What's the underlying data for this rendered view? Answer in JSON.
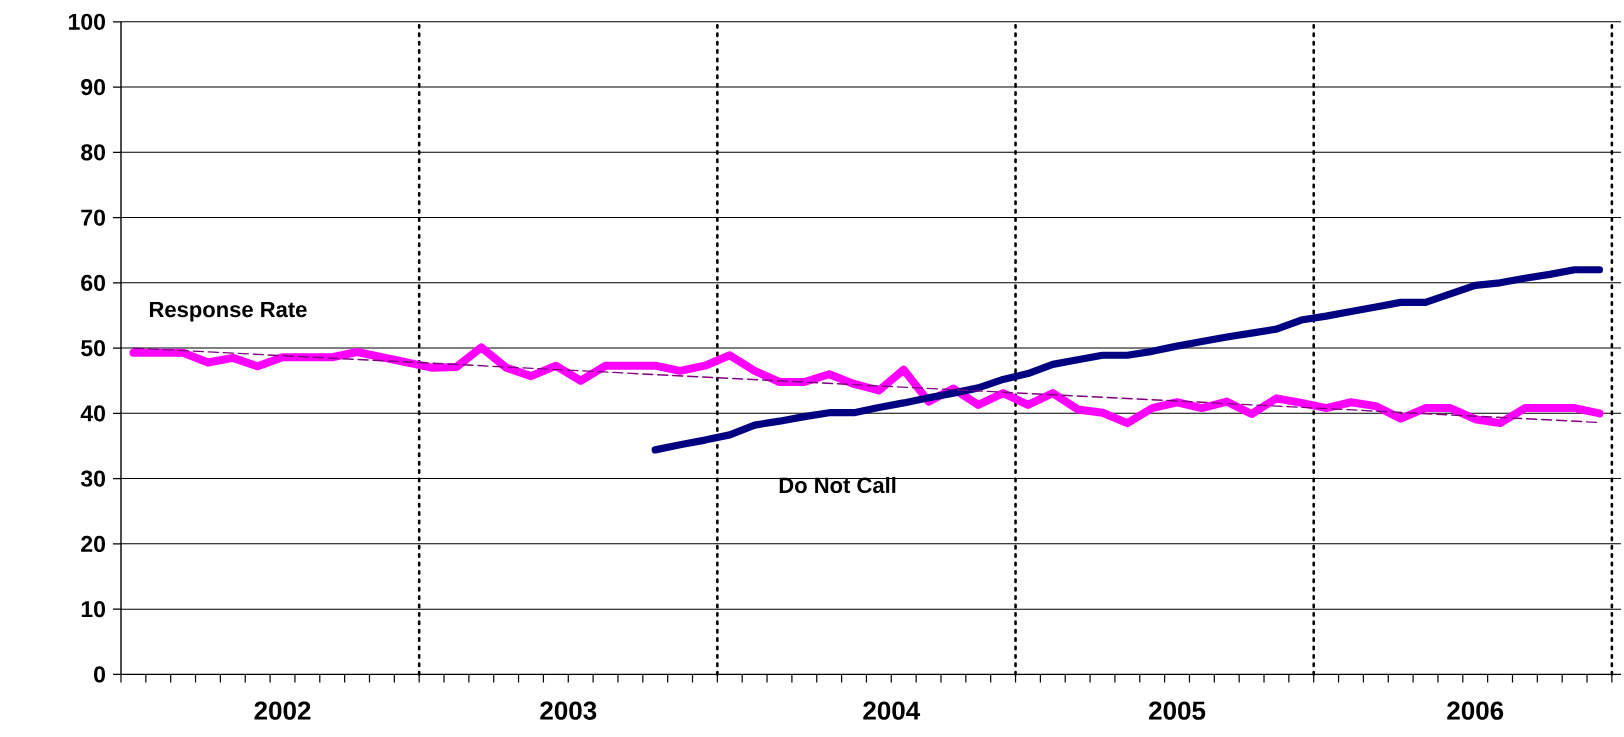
{
  "chart_data": {
    "type": "line",
    "x": [
      "2002-01",
      "2002-02",
      "2002-03",
      "2002-04",
      "2002-05",
      "2002-06",
      "2002-07",
      "2002-08",
      "2002-09",
      "2002-10",
      "2002-11",
      "2002-12",
      "2003-01",
      "2003-02",
      "2003-03",
      "2003-04",
      "2003-05",
      "2003-06",
      "2003-07",
      "2003-08",
      "2003-09",
      "2003-10",
      "2003-11",
      "2003-12",
      "2004-01",
      "2004-02",
      "2004-03",
      "2004-04",
      "2004-05",
      "2004-06",
      "2004-07",
      "2004-08",
      "2004-09",
      "2004-10",
      "2004-11",
      "2004-12",
      "2005-01",
      "2005-02",
      "2005-03",
      "2005-04",
      "2005-05",
      "2005-06",
      "2005-07",
      "2005-08",
      "2005-09",
      "2005-10",
      "2005-11",
      "2005-12",
      "2006-01",
      "2006-02",
      "2006-03",
      "2006-04",
      "2006-05",
      "2006-06",
      "2006-07",
      "2006-08",
      "2006-09",
      "2006-10",
      "2006-11",
      "2006-12"
    ],
    "series": [
      {
        "name": "Response Rate",
        "color": "#ff00ff",
        "values": [
          49.3,
          49.3,
          49.3,
          47.8,
          48.5,
          47.2,
          48.6,
          48.6,
          48.6,
          49.4,
          48.6,
          47.8,
          47.0,
          47.1,
          50.1,
          47.0,
          45.7,
          47.3,
          45.0,
          47.3,
          47.3,
          47.3,
          46.5,
          47.3,
          48.9,
          46.5,
          44.8,
          44.8,
          46.0,
          44.5,
          43.5,
          46.7,
          41.8,
          43.8,
          41.3,
          43.1,
          41.3,
          43.1,
          40.6,
          40.1,
          38.5,
          40.8,
          41.7,
          40.8,
          41.8,
          39.9,
          42.3,
          41.6,
          40.8,
          41.7,
          41.1,
          39.2,
          40.8,
          40.8,
          39.1,
          38.5,
          40.8,
          40.8,
          40.8,
          40.0
        ]
      },
      {
        "name": "Do Not Call",
        "color": "#000080",
        "values": [
          null,
          null,
          null,
          null,
          null,
          null,
          null,
          null,
          null,
          null,
          null,
          null,
          null,
          null,
          null,
          null,
          null,
          null,
          null,
          null,
          null,
          34.4,
          35.2,
          35.9,
          36.7,
          38.2,
          38.8,
          39.5,
          40.1,
          40.1,
          40.9,
          41.6,
          42.4,
          43.1,
          43.9,
          45.2,
          46.1,
          47.5,
          48.2,
          48.9,
          48.9,
          49.5,
          50.3,
          51.0,
          51.7,
          52.3,
          52.9,
          54.3,
          54.9,
          55.6,
          56.3,
          57.0,
          57.0,
          58.3,
          59.6,
          60.0,
          60.7,
          61.3,
          62.0,
          62.0
        ]
      },
      {
        "color": "#800080",
        "line_style": "dashed",
        "x": [
          "2002-01",
          "2006-12"
        ],
        "values": [
          50.0,
          38.6
        ]
      }
    ],
    "xlim": [
      "2001-12-16",
      "2006-12-27"
    ],
    "xticks": [
      {
        "value": "2001-12-16",
        "label": null
      },
      {
        "value": "2002-01-16",
        "label": null
      },
      {
        "value": "2002-02-16",
        "label": null
      },
      {
        "value": "2002-03-16",
        "label": null
      },
      {
        "value": "2002-04-16",
        "label": null
      },
      {
        "value": "2002-05-16",
        "label": null
      },
      {
        "value": "2002-06-16",
        "label": null
      },
      {
        "value": "2002-07-16",
        "label": null
      },
      {
        "value": "2002-08-16",
        "label": null
      },
      {
        "value": "2002-09-16",
        "label": null
      },
      {
        "value": "2002-10-16",
        "label": null
      },
      {
        "value": "2002-11-16",
        "label": null
      },
      {
        "value": "2002-12-16",
        "label": null
      },
      {
        "value": "2003-01-16",
        "label": null
      },
      {
        "value": "2003-02-16",
        "label": null
      },
      {
        "value": "2003-03-16",
        "label": null
      },
      {
        "value": "2003-04-16",
        "label": null
      },
      {
        "value": "2003-05-16",
        "label": null
      },
      {
        "value": "2003-06-16",
        "label": null
      },
      {
        "value": "2003-07-16",
        "label": null
      },
      {
        "value": "2003-08-16",
        "label": null
      },
      {
        "value": "2003-09-16",
        "label": null
      },
      {
        "value": "2003-10-16",
        "label": null
      },
      {
        "value": "2003-11-16",
        "label": null
      },
      {
        "value": "2003-12-16",
        "label": null
      },
      {
        "value": "2004-01-16",
        "label": null
      },
      {
        "value": "2004-02-16",
        "label": null
      },
      {
        "value": "2004-03-16",
        "label": null
      },
      {
        "value": "2004-04-16",
        "label": null
      },
      {
        "value": "2004-05-16",
        "label": null
      },
      {
        "value": "2004-06-16",
        "label": null
      },
      {
        "value": "2004-07-16",
        "label": null
      },
      {
        "value": "2004-08-16",
        "label": null
      },
      {
        "value": "2004-09-16",
        "label": null
      },
      {
        "value": "2004-10-16",
        "label": null
      },
      {
        "value": "2004-11-16",
        "label": null
      },
      {
        "value": "2004-12-16",
        "label": null
      },
      {
        "value": "2005-01-16",
        "label": null
      },
      {
        "value": "2005-02-16",
        "label": null
      },
      {
        "value": "2005-03-16",
        "label": null
      },
      {
        "value": "2005-04-16",
        "label": null
      },
      {
        "value": "2005-05-16",
        "label": null
      },
      {
        "value": "2005-06-16",
        "label": null
      },
      {
        "value": "2005-07-16",
        "label": null
      },
      {
        "value": "2005-08-16",
        "label": null
      },
      {
        "value": "2005-09-16",
        "label": null
      },
      {
        "value": "2005-10-16",
        "label": null
      },
      {
        "value": "2005-11-16",
        "label": null
      },
      {
        "value": "2005-12-16",
        "label": null
      },
      {
        "value": "2006-01-16",
        "label": null
      },
      {
        "value": "2006-02-16",
        "label": null
      },
      {
        "value": "2006-03-16",
        "label": null
      },
      {
        "value": "2006-04-16",
        "label": null
      },
      {
        "value": "2006-05-16",
        "label": null
      },
      {
        "value": "2006-06-16",
        "label": null
      },
      {
        "value": "2006-07-16",
        "label": null
      },
      {
        "value": "2006-08-16",
        "label": null
      },
      {
        "value": "2006-09-16",
        "label": null
      },
      {
        "value": "2006-10-16",
        "label": null
      },
      {
        "value": "2006-11-16",
        "label": null
      },
      {
        "value": "2006-12-16",
        "label": null
      },
      {
        "value": "2002-07-01",
        "label": "2002"
      },
      {
        "value": "2003-06-16",
        "label": "2003"
      },
      {
        "value": "2004-07-16",
        "label": "2004"
      },
      {
        "value": "2005-07-01",
        "label": "2005"
      },
      {
        "value": "2006-07-01",
        "label": "2006"
      }
    ],
    "ylim": [
      0,
      100
    ],
    "yticks": [
      0,
      10,
      20,
      30,
      40,
      50,
      60,
      70,
      80,
      90,
      100
    ],
    "grid": "y",
    "ref_lines": [
      {
        "axis": "x",
        "value": "2002-12-16",
        "color": "#000000",
        "line_style": "dotted"
      },
      {
        "axis": "x",
        "value": "2003-12-16",
        "color": "#000000",
        "line_style": "dotted"
      },
      {
        "axis": "x",
        "value": "2004-12-16",
        "color": "#000000",
        "line_style": "dotted"
      },
      {
        "axis": "x",
        "value": "2005-12-16",
        "color": "#000000",
        "line_style": "dotted"
      },
      {
        "axis": "x",
        "value": "2006-12-16",
        "color": "#000000",
        "line_style": "dotted"
      }
    ]
  }
}
